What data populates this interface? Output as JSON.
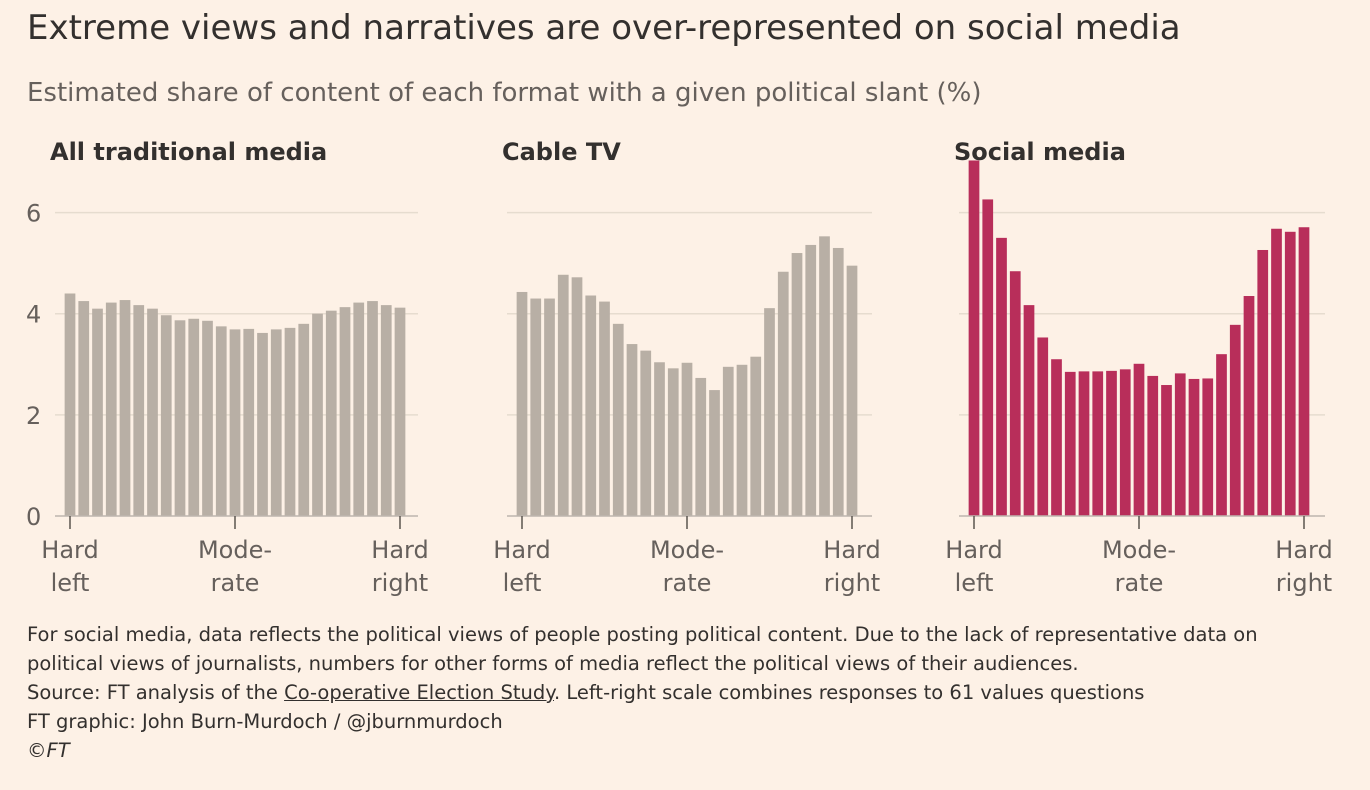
{
  "title": "Extreme views and narratives are over-represented on social media",
  "subtitle": "Estimated share of content of each format with a given political slant (%)",
  "colors": {
    "background": "#fdf1e6",
    "traditional_bars": "#b8afa5",
    "social_bars": "#b82e5a",
    "gridline": "#e6dccf",
    "axis": "#bdb6ae",
    "text": "#33302e",
    "muted_text": "#66605c"
  },
  "chart_data": [
    {
      "type": "bar",
      "title": "All traditional media",
      "color": "#b8afa5",
      "ylim": [
        0,
        7
      ],
      "yticks": [
        0,
        2,
        4,
        6
      ],
      "grid": true,
      "x_tick_labels": [
        [
          "Hard",
          "left"
        ],
        [
          "Mode-",
          "rate"
        ],
        [
          "Hard",
          "right"
        ]
      ],
      "values": [
        4.4,
        4.25,
        4.1,
        4.22,
        4.27,
        4.17,
        4.1,
        3.97,
        3.87,
        3.9,
        3.86,
        3.75,
        3.69,
        3.7,
        3.62,
        3.69,
        3.72,
        3.8,
        4.0,
        4.06,
        4.13,
        4.22,
        4.25,
        4.17,
        4.12
      ]
    },
    {
      "type": "bar",
      "title": "Cable TV",
      "color": "#b8afa5",
      "ylim": [
        0,
        7
      ],
      "yticks": [
        0,
        2,
        4,
        6
      ],
      "grid": true,
      "x_tick_labels": [
        [
          "Hard",
          "left"
        ],
        [
          "Mode-",
          "rate"
        ],
        [
          "Hard",
          "right"
        ]
      ],
      "values": [
        4.43,
        4.3,
        4.3,
        4.77,
        4.72,
        4.36,
        4.24,
        3.8,
        3.4,
        3.27,
        3.04,
        2.92,
        3.03,
        2.73,
        2.49,
        2.95,
        2.99,
        3.15,
        4.11,
        4.83,
        5.2,
        5.36,
        5.53,
        5.3,
        4.95
      ]
    },
    {
      "type": "bar",
      "title": "Social media",
      "color": "#b82e5a",
      "ylim": [
        0,
        7
      ],
      "yticks": [
        0,
        2,
        4,
        6
      ],
      "grid": true,
      "x_tick_labels": [
        [
          "Hard",
          "left"
        ],
        [
          "Mode-",
          "rate"
        ],
        [
          "Hard",
          "right"
        ]
      ],
      "values": [
        7.03,
        6.26,
        5.5,
        4.84,
        4.17,
        3.53,
        3.1,
        2.85,
        2.86,
        2.86,
        2.87,
        2.9,
        3.01,
        2.77,
        2.59,
        2.82,
        2.71,
        2.72,
        3.2,
        3.78,
        4.35,
        5.26,
        5.68,
        5.62,
        5.71
      ]
    }
  ],
  "notes": {
    "line1": "For social media, data reflects the political views of people posting political content. Due to the lack of representative data on",
    "line2": "political views of journalists, numbers for other forms of media reflect the political views of their audiences.",
    "source_prefix": "Source: FT analysis of the ",
    "source_link": "Co-operative Election Study",
    "source_suffix": ". Left-right scale combines responses to 61 values questions",
    "credit": "FT graphic: John Burn-Murdoch / @jburnmurdoch",
    "copyright": "©FT"
  }
}
